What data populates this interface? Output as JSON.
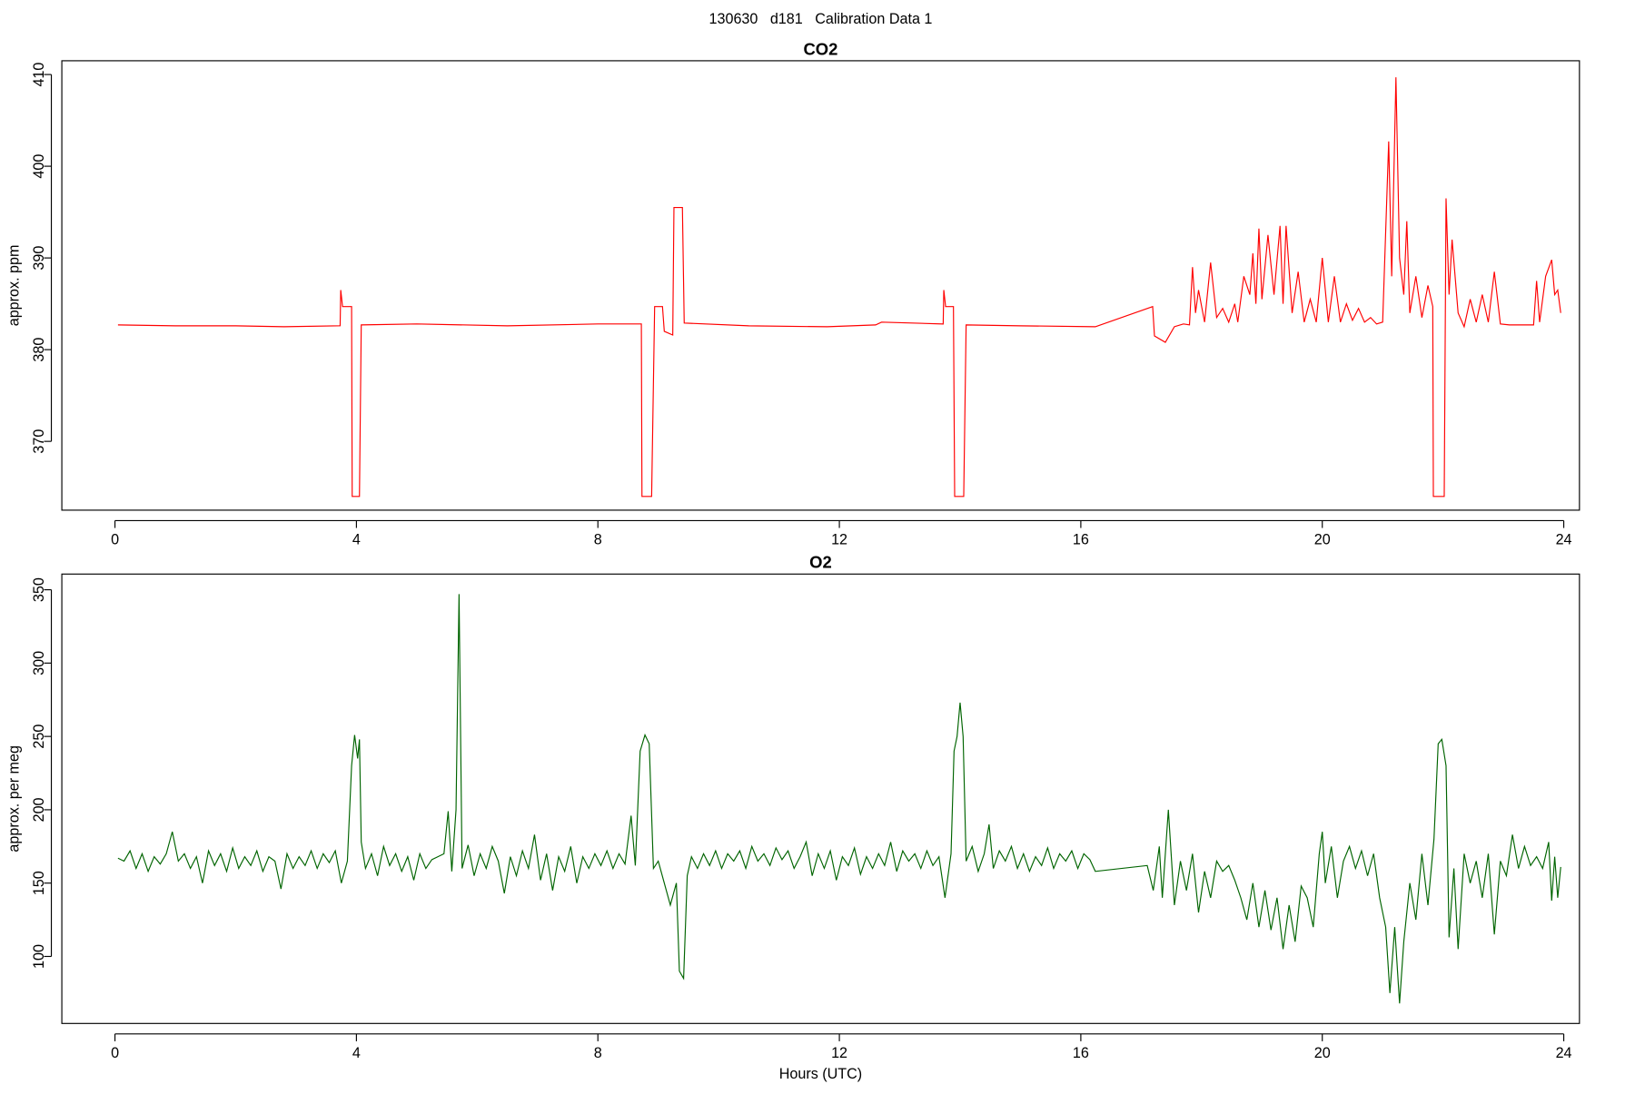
{
  "title": "130630   d181   Calibration Data 1",
  "chart_data": [
    {
      "type": "line",
      "title": "CO2",
      "ylabel": "approx. ppm",
      "color": "#ff0000",
      "xlim": [
        -0.88,
        24.26
      ],
      "xticks": [
        0,
        4,
        8,
        12,
        16,
        20,
        24
      ],
      "ylim": [
        362.5,
        411.5
      ],
      "yticks": [
        370,
        380,
        390,
        400,
        410
      ],
      "x": [
        0.05,
        1.0,
        2.0,
        2.8,
        3.73,
        3.74,
        3.77,
        3.92,
        3.93,
        4.05,
        4.08,
        5.0,
        6.5,
        8.0,
        8.72,
        8.73,
        8.89,
        8.94,
        9.07,
        9.1,
        9.24,
        9.26,
        9.4,
        9.43,
        10.5,
        11.8,
        12.6,
        12.7,
        13.72,
        13.73,
        13.76,
        13.89,
        13.91,
        14.06,
        14.1,
        15.0,
        16.24,
        17.19,
        17.22,
        17.4,
        17.55,
        17.7,
        17.8,
        17.85,
        17.9,
        17.95,
        18.05,
        18.15,
        18.25,
        18.35,
        18.45,
        18.55,
        18.6,
        18.7,
        18.8,
        18.85,
        18.9,
        18.95,
        19.0,
        19.1,
        19.2,
        19.3,
        19.35,
        19.4,
        19.5,
        19.6,
        19.7,
        19.8,
        19.9,
        20.0,
        20.1,
        20.2,
        20.3,
        20.4,
        20.5,
        20.6,
        20.7,
        20.8,
        20.9,
        21.0,
        21.1,
        21.15,
        21.22,
        21.28,
        21.35,
        21.4,
        21.45,
        21.55,
        21.65,
        21.75,
        21.83,
        21.84,
        22.02,
        22.05,
        22.1,
        22.15,
        22.25,
        22.35,
        22.45,
        22.55,
        22.65,
        22.75,
        22.85,
        22.95,
        23.1,
        23.5,
        23.55,
        23.6,
        23.7,
        23.8,
        23.85,
        23.9,
        23.95
      ],
      "values": [
        382.7,
        382.6,
        382.6,
        382.5,
        382.6,
        386.5,
        384.7,
        384.7,
        364.0,
        364.0,
        382.7,
        382.8,
        382.6,
        382.8,
        382.8,
        364.0,
        364.0,
        384.7,
        384.7,
        382.0,
        381.6,
        395.5,
        395.5,
        382.9,
        382.6,
        382.5,
        382.7,
        383.0,
        382.8,
        386.5,
        384.7,
        384.7,
        364.0,
        364.0,
        382.7,
        382.6,
        382.5,
        384.7,
        381.5,
        380.8,
        382.5,
        382.8,
        382.7,
        389.0,
        384.0,
        386.5,
        383.0,
        389.5,
        383.5,
        384.5,
        383.0,
        385.0,
        383.0,
        388.0,
        386.0,
        390.5,
        385.0,
        393.2,
        385.5,
        392.5,
        386.0,
        393.5,
        385.0,
        393.5,
        384.0,
        388.5,
        383.0,
        385.5,
        383.0,
        390.0,
        383.0,
        388.0,
        383.0,
        385.0,
        383.2,
        384.5,
        383.0,
        383.5,
        382.8,
        383.0,
        402.7,
        388.0,
        409.7,
        390.0,
        386.0,
        394.0,
        384.0,
        388.0,
        383.5,
        387.0,
        384.7,
        364.0,
        364.0,
        396.5,
        386.0,
        392.0,
        384.0,
        382.5,
        385.5,
        383.0,
        386.0,
        383.0,
        388.5,
        382.8,
        382.7,
        382.7,
        387.5,
        383.0,
        388.0,
        389.8,
        386.0,
        386.5,
        384.0
      ]
    },
    {
      "type": "line",
      "title": "O2",
      "ylabel": "approx. per meg",
      "xlabel": "Hours (UTC)",
      "color": "#006400",
      "xlim": [
        -0.88,
        24.26
      ],
      "xticks": [
        0,
        4,
        8,
        12,
        16,
        20,
        24
      ],
      "ylim": [
        54.3,
        360.7
      ],
      "yticks": [
        100,
        150,
        200,
        250,
        300,
        350
      ],
      "x": [
        0.05,
        0.15,
        0.25,
        0.35,
        0.45,
        0.55,
        0.65,
        0.75,
        0.85,
        0.95,
        1.05,
        1.15,
        1.25,
        1.35,
        1.45,
        1.55,
        1.65,
        1.75,
        1.85,
        1.95,
        2.05,
        2.15,
        2.25,
        2.35,
        2.45,
        2.55,
        2.65,
        2.75,
        2.85,
        2.95,
        3.05,
        3.15,
        3.25,
        3.35,
        3.45,
        3.55,
        3.65,
        3.75,
        3.85,
        3.92,
        3.97,
        4.02,
        4.05,
        4.08,
        4.15,
        4.25,
        4.35,
        4.45,
        4.55,
        4.65,
        4.75,
        4.85,
        4.95,
        5.05,
        5.15,
        5.25,
        5.35,
        5.45,
        5.52,
        5.58,
        5.65,
        5.7,
        5.75,
        5.85,
        5.95,
        6.05,
        6.15,
        6.25,
        6.35,
        6.45,
        6.55,
        6.65,
        6.75,
        6.85,
        6.95,
        7.05,
        7.15,
        7.25,
        7.35,
        7.45,
        7.55,
        7.65,
        7.75,
        7.85,
        7.95,
        8.05,
        8.15,
        8.25,
        8.35,
        8.45,
        8.55,
        8.62,
        8.7,
        8.78,
        8.85,
        8.92,
        9.0,
        9.1,
        9.2,
        9.3,
        9.35,
        9.42,
        9.48,
        9.55,
        9.65,
        9.75,
        9.85,
        9.95,
        10.05,
        10.15,
        10.25,
        10.35,
        10.45,
        10.55,
        10.65,
        10.75,
        10.85,
        10.95,
        11.05,
        11.15,
        11.25,
        11.35,
        11.45,
        11.55,
        11.65,
        11.75,
        11.85,
        11.95,
        12.05,
        12.15,
        12.25,
        12.35,
        12.45,
        12.55,
        12.65,
        12.75,
        12.85,
        12.95,
        13.05,
        13.15,
        13.25,
        13.35,
        13.45,
        13.55,
        13.65,
        13.75,
        13.85,
        13.9,
        13.95,
        14.0,
        14.05,
        14.1,
        14.2,
        14.3,
        14.4,
        14.48,
        14.55,
        14.65,
        14.75,
        14.85,
        14.95,
        15.05,
        15.15,
        15.25,
        15.35,
        15.45,
        15.55,
        15.65,
        15.75,
        15.85,
        15.95,
        16.05,
        16.15,
        16.24,
        17.1,
        17.2,
        17.3,
        17.35,
        17.45,
        17.55,
        17.65,
        17.75,
        17.85,
        17.95,
        18.05,
        18.15,
        18.25,
        18.35,
        18.45,
        18.55,
        18.65,
        18.75,
        18.85,
        18.95,
        19.05,
        19.15,
        19.25,
        19.35,
        19.45,
        19.55,
        19.65,
        19.75,
        19.85,
        19.95,
        20.0,
        20.05,
        20.15,
        20.25,
        20.35,
        20.45,
        20.55,
        20.65,
        20.75,
        20.85,
        20.95,
        21.05,
        21.12,
        21.2,
        21.28,
        21.35,
        21.45,
        21.55,
        21.65,
        21.75,
        21.85,
        21.92,
        21.98,
        22.05,
        22.1,
        22.18,
        22.25,
        22.35,
        22.45,
        22.55,
        22.65,
        22.75,
        22.85,
        22.95,
        23.05,
        23.15,
        23.25,
        23.35,
        23.45,
        23.55,
        23.65,
        23.75,
        23.8,
        23.85,
        23.9,
        23.95
      ],
      "values": [
        167,
        165,
        172,
        160,
        170,
        158,
        168,
        163,
        170,
        185,
        165,
        170,
        160,
        168,
        150,
        172,
        162,
        170,
        158,
        174,
        160,
        168,
        162,
        172,
        158,
        168,
        165,
        146,
        170,
        160,
        168,
        162,
        172,
        160,
        170,
        164,
        172,
        150,
        165,
        230,
        251,
        235,
        248,
        178,
        160,
        170,
        155,
        175,
        162,
        170,
        158,
        168,
        152,
        170,
        160,
        166,
        168,
        170,
        199,
        158,
        200,
        347,
        160,
        176,
        155,
        170,
        160,
        175,
        165,
        143,
        168,
        155,
        172,
        160,
        183,
        152,
        170,
        145,
        168,
        158,
        175,
        150,
        168,
        160,
        170,
        162,
        172,
        160,
        170,
        163,
        196,
        162,
        240,
        251,
        245,
        160,
        165,
        150,
        135,
        150,
        90,
        85,
        155,
        168,
        160,
        170,
        162,
        172,
        160,
        170,
        165,
        172,
        160,
        175,
        165,
        170,
        162,
        174,
        166,
        172,
        160,
        168,
        178,
        155,
        170,
        160,
        172,
        152,
        168,
        162,
        174,
        156,
        168,
        160,
        170,
        162,
        178,
        158,
        172,
        165,
        170,
        160,
        172,
        162,
        168,
        140,
        170,
        240,
        250,
        273,
        250,
        165,
        175,
        158,
        170,
        190,
        160,
        172,
        165,
        175,
        160,
        170,
        158,
        168,
        162,
        174,
        160,
        170,
        165,
        172,
        160,
        170,
        166,
        158,
        162,
        145,
        175,
        140,
        200,
        135,
        165,
        145,
        170,
        130,
        158,
        140,
        165,
        158,
        162,
        152,
        140,
        125,
        150,
        120,
        145,
        118,
        140,
        105,
        135,
        110,
        148,
        140,
        120,
        170,
        185,
        150,
        175,
        140,
        165,
        175,
        160,
        172,
        155,
        170,
        140,
        120,
        75,
        120,
        68,
        110,
        150,
        125,
        170,
        135,
        180,
        245,
        248,
        230,
        113,
        160,
        105,
        170,
        150,
        165,
        140,
        170,
        115,
        165,
        155,
        183,
        160,
        175,
        162,
        168,
        160,
        178,
        138,
        168,
        140,
        161
      ]
    }
  ]
}
